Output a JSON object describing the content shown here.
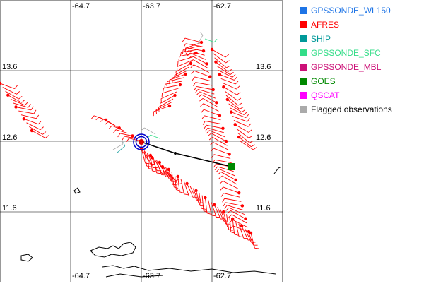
{
  "map": {
    "lon_ticks": [
      "-64.7",
      "-63.7",
      "-62.7"
    ],
    "lat_ticks": [
      "13.6",
      "12.6",
      "11.6"
    ],
    "storm_center_lon": -63.7,
    "storm_center_lat": 12.6
  },
  "legend": {
    "items": [
      {
        "label": "GPSSONDE_WL150",
        "color": "#1e74e6"
      },
      {
        "label": "AFRES",
        "color": "#ff0000"
      },
      {
        "label": "SHIP",
        "color": "#009999"
      },
      {
        "label": "GPSSONDE_SFC",
        "color": "#33dd88"
      },
      {
        "label": "GPSSONDE_MBL",
        "color": "#cc1177"
      },
      {
        "label": "GOES",
        "color": "#008800"
      },
      {
        "label": "QSCAT",
        "color": "#ff00ff"
      },
      {
        "label": "Flagged observations",
        "color": "#aaaaaa"
      }
    ]
  },
  "colors": {
    "grid": "#000000",
    "afres": "#ff0000",
    "goes": "#008800",
    "center": "#0000cc"
  }
}
